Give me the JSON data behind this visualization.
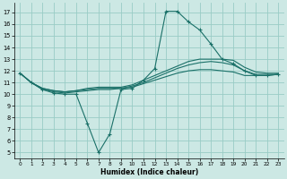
{
  "xlabel": "Humidex (Indice chaleur)",
  "bg_color": "#cce8e4",
  "grid_color": "#99ccc5",
  "line_color": "#1a7068",
  "xlim": [
    -0.5,
    23.5
  ],
  "ylim": [
    4.5,
    17.8
  ],
  "yticks": [
    5,
    6,
    7,
    8,
    9,
    10,
    11,
    12,
    13,
    14,
    15,
    16,
    17
  ],
  "xticks": [
    0,
    1,
    2,
    3,
    4,
    5,
    6,
    7,
    8,
    9,
    10,
    11,
    12,
    13,
    14,
    15,
    16,
    17,
    18,
    19,
    20,
    21,
    22,
    23
  ],
  "line_main": {
    "x": [
      0,
      1,
      2,
      3,
      4,
      5,
      6,
      7,
      8,
      9,
      10,
      11,
      12,
      13,
      14,
      15,
      16,
      17,
      18,
      19,
      20,
      21,
      22,
      23
    ],
    "y": [
      11.8,
      11.0,
      10.4,
      10.1,
      10.0,
      10.0,
      7.5,
      5.0,
      6.6,
      10.4,
      10.5,
      11.2,
      12.2,
      17.1,
      17.1,
      16.2,
      15.5,
      14.3,
      13.0,
      12.6,
      12.0,
      11.6,
      11.6,
      11.7
    ]
  },
  "line_upper": {
    "x": [
      0,
      1,
      2,
      3,
      4,
      5,
      6,
      7,
      8,
      9,
      10,
      11,
      12,
      13,
      14,
      15,
      16,
      17,
      18,
      19,
      20,
      21,
      22,
      23
    ],
    "y": [
      11.8,
      11.0,
      10.5,
      10.3,
      10.2,
      10.3,
      10.5,
      10.6,
      10.6,
      10.6,
      10.8,
      11.2,
      11.6,
      12.0,
      12.4,
      12.8,
      13.0,
      13.0,
      13.0,
      12.9,
      12.3,
      11.9,
      11.8,
      11.8
    ]
  },
  "line_mid": {
    "x": [
      0,
      1,
      2,
      3,
      4,
      5,
      6,
      7,
      8,
      9,
      10,
      11,
      12,
      13,
      14,
      15,
      16,
      17,
      18,
      19,
      20,
      21,
      22,
      23
    ],
    "y": [
      11.8,
      11.0,
      10.5,
      10.3,
      10.2,
      10.3,
      10.4,
      10.5,
      10.5,
      10.5,
      10.7,
      11.0,
      11.4,
      11.8,
      12.2,
      12.5,
      12.7,
      12.8,
      12.7,
      12.5,
      12.0,
      11.7,
      11.7,
      11.7
    ]
  },
  "line_lower": {
    "x": [
      0,
      1,
      2,
      3,
      4,
      5,
      6,
      7,
      8,
      9,
      10,
      11,
      12,
      13,
      14,
      15,
      16,
      17,
      18,
      19,
      20,
      21,
      22,
      23
    ],
    "y": [
      11.8,
      11.0,
      10.4,
      10.2,
      10.1,
      10.2,
      10.3,
      10.4,
      10.4,
      10.5,
      10.6,
      10.9,
      11.2,
      11.5,
      11.8,
      12.0,
      12.1,
      12.1,
      12.0,
      11.9,
      11.6,
      11.6,
      11.6,
      11.7
    ]
  }
}
